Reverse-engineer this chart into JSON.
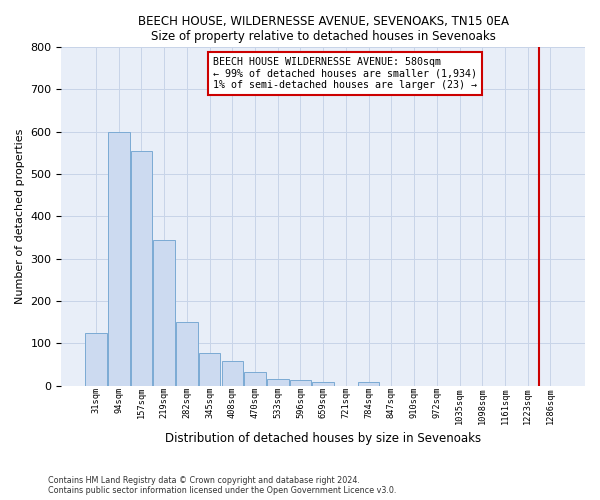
{
  "title1": "BEECH HOUSE, WILDERNESSE AVENUE, SEVENOAKS, TN15 0EA",
  "title2": "Size of property relative to detached houses in Sevenoaks",
  "xlabel": "Distribution of detached houses by size in Sevenoaks",
  "ylabel": "Number of detached properties",
  "bar_heights": [
    125,
    600,
    555,
    345,
    150,
    78,
    57,
    33,
    16,
    13,
    8,
    0,
    8,
    0,
    0,
    0,
    0,
    0,
    0,
    0,
    0
  ],
  "categories": [
    "31sqm",
    "94sqm",
    "157sqm",
    "219sqm",
    "282sqm",
    "345sqm",
    "408sqm",
    "470sqm",
    "533sqm",
    "596sqm",
    "659sqm",
    "721sqm",
    "784sqm",
    "847sqm",
    "910sqm",
    "972sqm",
    "1035sqm",
    "1098sqm",
    "1161sqm",
    "1223sqm",
    "1286sqm"
  ],
  "bar_color": "#ccdaf0",
  "bar_edge_color": "#7baad4",
  "vline_color": "#cc0000",
  "vline_x": 19.5,
  "annotation_text": "BEECH HOUSE WILDERNESSE AVENUE: 580sqm\n← 99% of detached houses are smaller (1,934)\n1% of semi-detached houses are larger (23) →",
  "grid_color": "#c8d4e8",
  "bg_color": "#e8eef8",
  "footnote_line1": "Contains HM Land Registry data © Crown copyright and database right 2024.",
  "footnote_line2": "Contains public sector information licensed under the Open Government Licence v3.0.",
  "ylim": [
    0,
    800
  ],
  "yticks": [
    0,
    100,
    200,
    300,
    400,
    500,
    600,
    700,
    800
  ]
}
